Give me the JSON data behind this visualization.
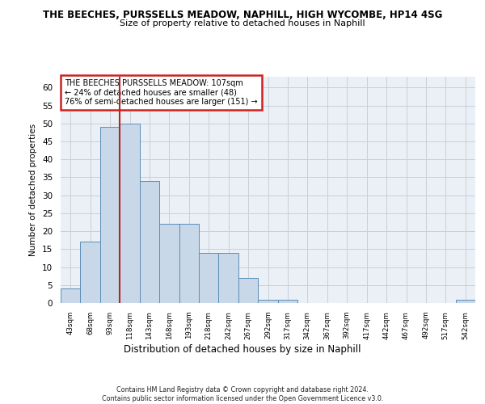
{
  "title": "THE BEECHES, PURSSELLS MEADOW, NAPHILL, HIGH WYCOMBE, HP14 4SG",
  "subtitle": "Size of property relative to detached houses in Naphill",
  "xlabel": "Distribution of detached houses by size in Naphill",
  "ylabel": "Number of detached properties",
  "bar_color": "#c8d8e8",
  "bar_edge_color": "#5b8db8",
  "bins": [
    "43sqm",
    "68sqm",
    "93sqm",
    "118sqm",
    "143sqm",
    "168sqm",
    "193sqm",
    "218sqm",
    "242sqm",
    "267sqm",
    "292sqm",
    "317sqm",
    "342sqm",
    "367sqm",
    "392sqm",
    "417sqm",
    "442sqm",
    "467sqm",
    "492sqm",
    "517sqm",
    "542sqm"
  ],
  "values": [
    4,
    17,
    49,
    50,
    34,
    22,
    22,
    14,
    14,
    7,
    1,
    1,
    0,
    0,
    0,
    0,
    0,
    0,
    0,
    0,
    1
  ],
  "ylim": [
    0,
    63
  ],
  "yticks": [
    0,
    5,
    10,
    15,
    20,
    25,
    30,
    35,
    40,
    45,
    50,
    55,
    60
  ],
  "property_line_x": 2.5,
  "property_line_color": "#bb2222",
  "annotation_text": "THE BEECHES PURSSELLS MEADOW: 107sqm\n← 24% of detached houses are smaller (48)\n76% of semi-detached houses are larger (151) →",
  "annotation_box_color": "#ffffff",
  "annotation_box_edge": "#cc2222",
  "footer": "Contains HM Land Registry data © Crown copyright and database right 2024.\nContains public sector information licensed under the Open Government Licence v3.0.",
  "bg_color": "#eaf0f6",
  "grid_color": "#c8d0d8"
}
